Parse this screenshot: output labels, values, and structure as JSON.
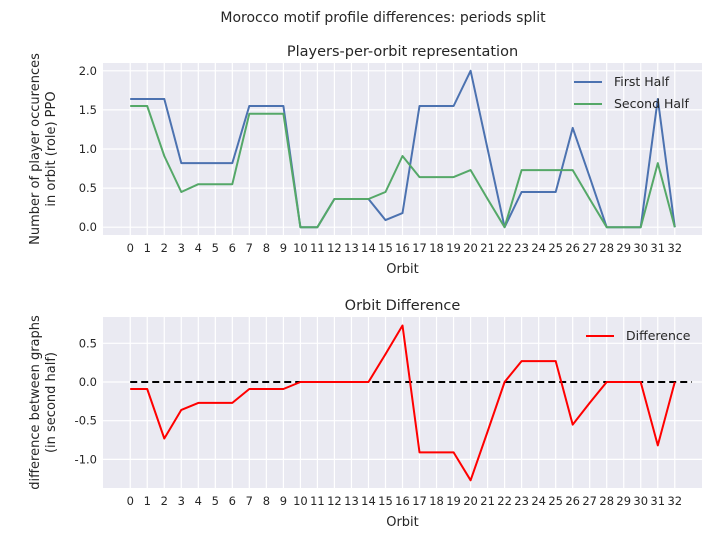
{
  "figure": {
    "suptitle": "Morocco motif profile differences: periods split"
  },
  "colors": {
    "background": "#eaeaf2",
    "grid": "#ffffff",
    "first_half": "#4c72b0",
    "second_half": "#55a868",
    "difference": "#ff0000",
    "zero_line": "#000000"
  },
  "chart_data": [
    {
      "type": "line",
      "title": "Players-per-orbit representation",
      "xlabel": "Orbit",
      "ylabel": "Number of player occurences\nin orbit (role) PPO",
      "x": [
        0,
        1,
        2,
        3,
        4,
        5,
        6,
        7,
        8,
        9,
        10,
        11,
        12,
        13,
        14,
        15,
        16,
        17,
        18,
        19,
        20,
        21,
        22,
        23,
        24,
        25,
        26,
        27,
        28,
        29,
        30,
        31,
        32
      ],
      "xticks": [
        "0",
        "1",
        "2",
        "3",
        "4",
        "5",
        "6",
        "7",
        "8",
        "9",
        "10",
        "11",
        "12",
        "13",
        "14",
        "15",
        "16",
        "17",
        "18",
        "19",
        "20",
        "21",
        "22",
        "23",
        "24",
        "25",
        "26",
        "27",
        "28",
        "29",
        "30",
        "31",
        "32"
      ],
      "ylim": [
        -0.1,
        2.1
      ],
      "yticks": [
        "0.0",
        "0.5",
        "1.0",
        "1.5",
        "2.0"
      ],
      "grid": true,
      "legend": "top-right",
      "series": [
        {
          "name": "First Half",
          "color_key": "first_half",
          "values": [
            1.64,
            1.64,
            1.64,
            0.82,
            0.82,
            0.82,
            0.82,
            1.55,
            1.55,
            1.55,
            0.0,
            0.0,
            0.36,
            0.36,
            0.36,
            0.09,
            0.18,
            1.55,
            1.55,
            1.55,
            2.0,
            1.0,
            0.0,
            0.45,
            0.45,
            0.45,
            1.27,
            0.64,
            0.0,
            0.0,
            0.0,
            1.64,
            0.0
          ]
        },
        {
          "name": "Second Half",
          "color_key": "second_half",
          "values": [
            1.55,
            1.55,
            0.91,
            0.45,
            0.55,
            0.55,
            0.55,
            1.45,
            1.45,
            1.45,
            0.0,
            0.0,
            0.36,
            0.36,
            0.36,
            0.45,
            0.91,
            0.64,
            0.64,
            0.64,
            0.73,
            0.36,
            0.0,
            0.73,
            0.73,
            0.73,
            0.73,
            0.36,
            0.0,
            0.0,
            0.0,
            0.82,
            0.0
          ]
        }
      ]
    },
    {
      "type": "line",
      "title": "Orbit Difference",
      "xlabel": "Orbit",
      "ylabel": "difference between graphs\n(in second half)",
      "x": [
        0,
        1,
        2,
        3,
        4,
        5,
        6,
        7,
        8,
        9,
        10,
        11,
        12,
        13,
        14,
        15,
        16,
        17,
        18,
        19,
        20,
        21,
        22,
        23,
        24,
        25,
        26,
        27,
        28,
        29,
        30,
        31,
        32
      ],
      "xticks": [
        "0",
        "1",
        "2",
        "3",
        "4",
        "5",
        "6",
        "7",
        "8",
        "9",
        "10",
        "11",
        "12",
        "13",
        "14",
        "15",
        "16",
        "17",
        "18",
        "19",
        "20",
        "21",
        "22",
        "23",
        "24",
        "25",
        "26",
        "27",
        "28",
        "29",
        "30",
        "31",
        "32"
      ],
      "ylim": [
        -1.37,
        0.84
      ],
      "yticks": [
        "0.5",
        "0.0",
        "-0.5",
        "-1.0"
      ],
      "ytick_values": [
        0.5,
        0.0,
        -0.5,
        -1.0
      ],
      "grid": true,
      "legend": "top-right",
      "series": [
        {
          "name": "Difference",
          "color_key": "difference",
          "values": [
            -0.09,
            -0.09,
            -0.73,
            -0.36,
            -0.27,
            -0.27,
            -0.27,
            -0.09,
            -0.09,
            -0.09,
            0.0,
            0.0,
            0.0,
            0.0,
            0.0,
            0.36,
            0.73,
            -0.91,
            -0.91,
            -0.91,
            -1.27,
            -0.64,
            0.0,
            0.27,
            0.27,
            0.27,
            -0.55,
            -0.27,
            0.0,
            0.0,
            0.0,
            -0.82,
            0.0
          ]
        }
      ],
      "reference_line": {
        "y": 0.0,
        "x_range": [
          0,
          33
        ],
        "style": "dashed",
        "color_key": "zero_line"
      }
    }
  ]
}
